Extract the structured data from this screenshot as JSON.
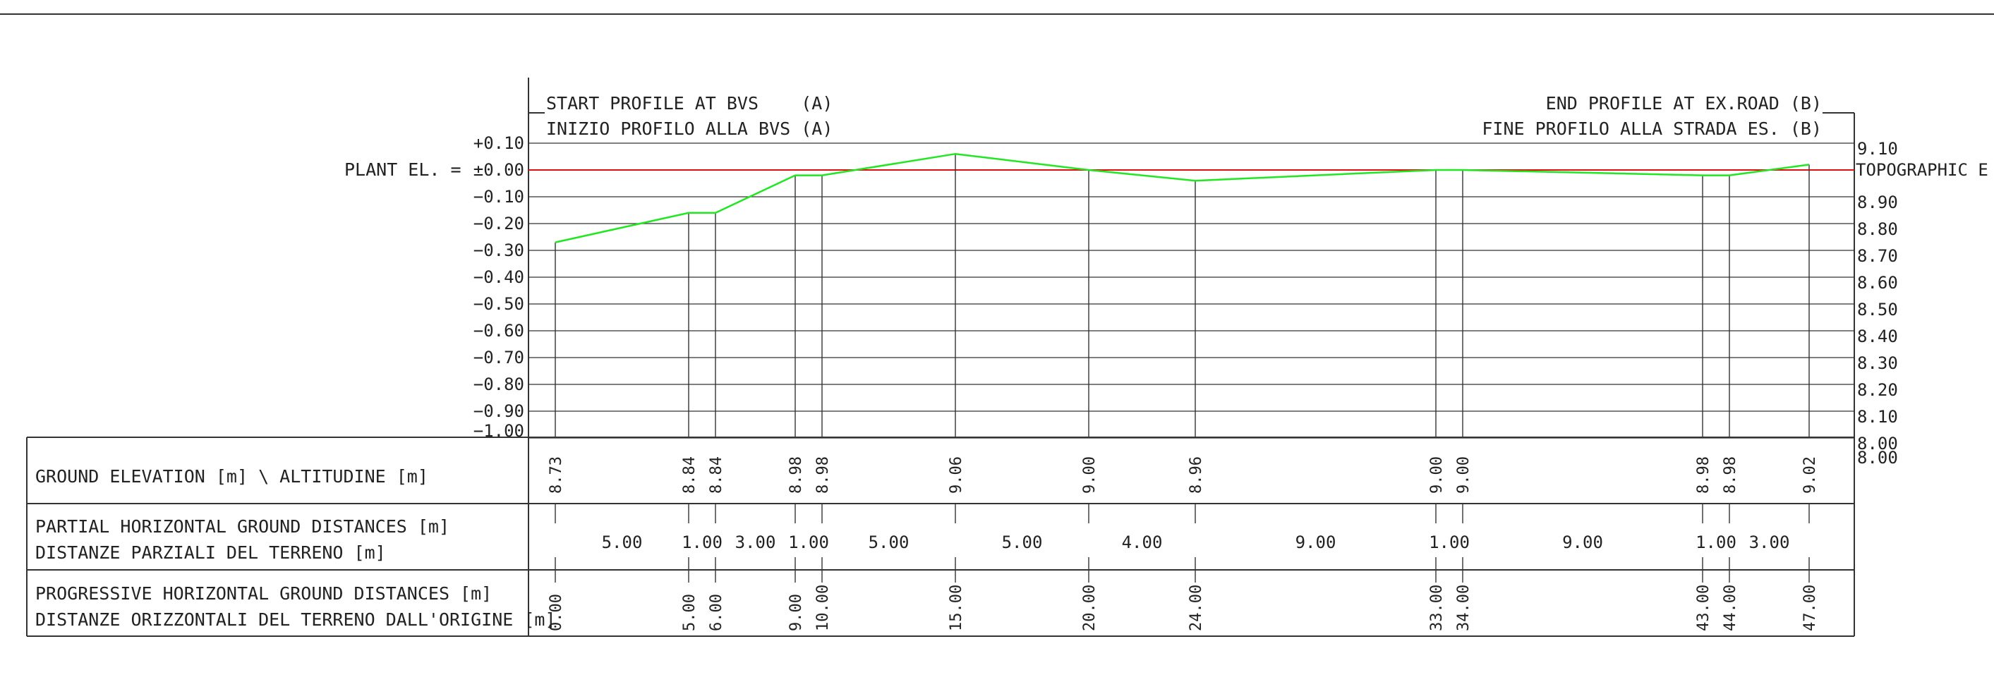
{
  "header": {
    "start_line1": "START PROFILE AT BVS    (A)",
    "start_line2": "INIZIO PROFILO ALLA BVS (A)",
    "end_line1": "END PROFILE AT EX.ROAD (B)",
    "end_line2": "FINE PROFILO ALLA STRADA ES. (B)"
  },
  "plant_label": "PLANT EL. =",
  "topographic_label": "TOPOGRAPHIC E",
  "colors": {
    "profile": "#22e622",
    "reference": "#e01010",
    "grid": "#333333"
  },
  "table": {
    "rows": [
      {
        "line1": "GROUND ELEVATION [m] \\ ALTITUDINE [m]",
        "line2": ""
      },
      {
        "line1": "PARTIAL HORIZONTAL GROUND DISTANCES [m]",
        "line2": "DISTANZE PARZIALI DEL TERRENO [m]"
      },
      {
        "line1": "PROGRESSIVE HORIZONTAL GROUND DISTANCES [m]",
        "line2": "DISTANZE ORIZZONTALI DEL TERRENO DALL'ORIGINE [m]"
      }
    ]
  },
  "chart_data": {
    "type": "line",
    "series": [
      {
        "x": [
          0,
          5,
          6,
          9,
          10,
          15,
          20,
          24,
          33,
          34,
          43,
          44,
          47
        ],
        "y": [
          8.73,
          8.84,
          8.84,
          8.98,
          8.98,
          9.06,
          9.0,
          8.96,
          9.0,
          9.0,
          8.98,
          8.98,
          9.02
        ]
      }
    ],
    "left_axis_ticks": [
      "+0.10",
      "±0.00",
      "−0.10",
      "−0.20",
      "−0.30",
      "−0.40",
      "−0.50",
      "−0.60",
      "−0.70",
      "−0.80",
      "−0.90",
      "−1.00"
    ],
    "right_axis_ticks": [
      "9.10",
      "",
      "8.90",
      "8.80",
      "8.70",
      "8.60",
      "8.50",
      "8.40",
      "8.30",
      "8.20",
      "8.10",
      "8.00"
    ],
    "ylim": [
      8.0,
      9.1
    ],
    "xlim": [
      0,
      47
    ],
    "reference_level": 9.0,
    "grid": true,
    "elevation_labels": [
      "8.73",
      "8.84",
      "8.84",
      "8.98",
      "8.98",
      "9.06",
      "9.00",
      "8.96",
      "9.00",
      "9.00",
      "8.98",
      "8.98",
      "9.02"
    ],
    "progressive_labels": [
      "0.00",
      "5.00",
      "6.00",
      "9.00",
      "10.00",
      "15.00",
      "20.00",
      "24.00",
      "33.00",
      "34.00",
      "43.00",
      "44.00",
      "47.00"
    ],
    "partial_labels": [
      "5.00",
      "1.00",
      "3.00",
      "1.00",
      "5.00",
      "5.00",
      "4.00",
      "9.00",
      "1.00",
      "9.00",
      "1.00",
      "3.00"
    ]
  }
}
